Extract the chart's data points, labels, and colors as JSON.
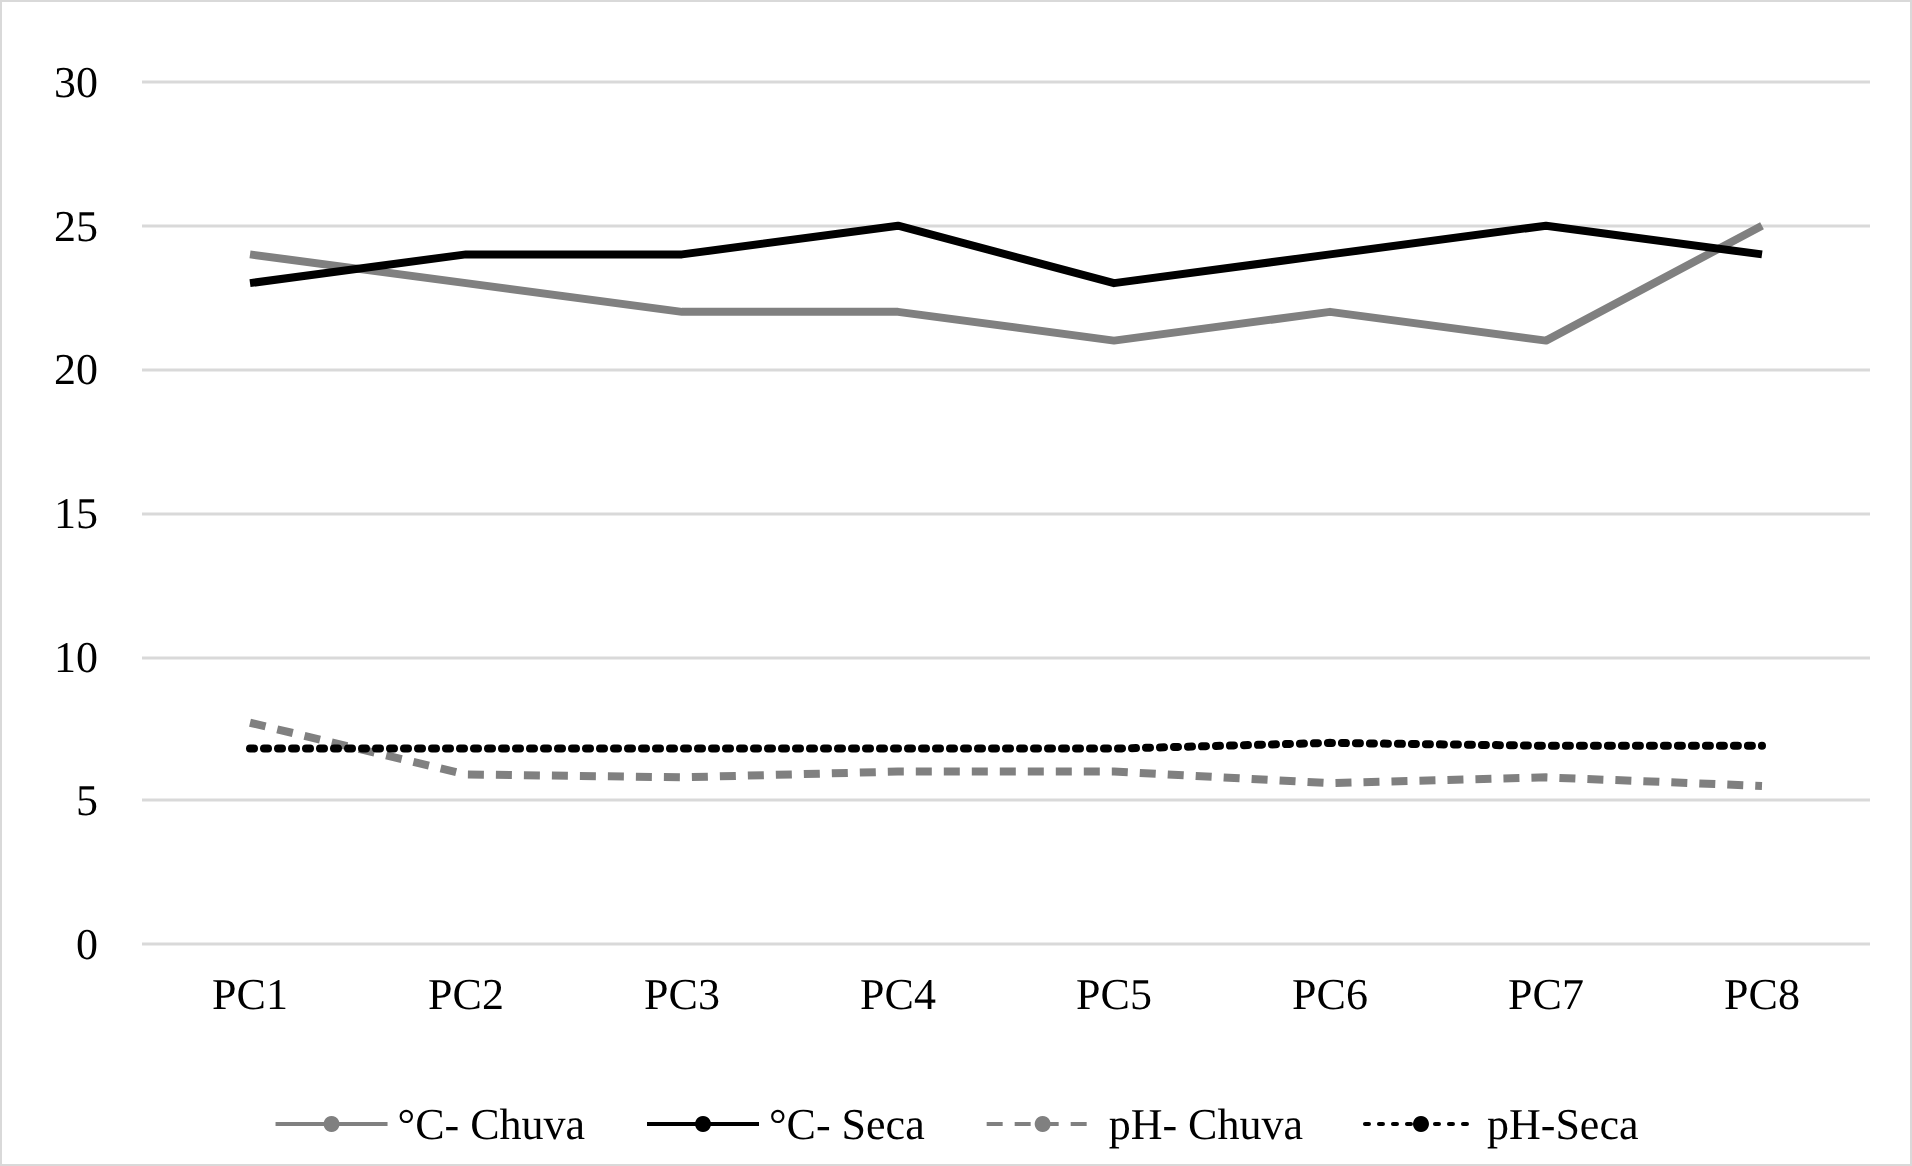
{
  "chart_data": {
    "type": "line",
    "categories": [
      "PC1",
      "PC2",
      "PC3",
      "PC4",
      "PC5",
      "PC6",
      "PC7",
      "PC8"
    ],
    "series": [
      {
        "name": "°C- Chuva",
        "color": "#808080",
        "line_style": "solid",
        "values": [
          24,
          23,
          22,
          22,
          21,
          22,
          21,
          25
        ]
      },
      {
        "name": "°C- Seca",
        "color": "#000000",
        "line_style": "solid",
        "values": [
          23,
          24,
          24,
          25,
          23,
          24,
          25,
          24
        ]
      },
      {
        "name": "pH- Chuva",
        "color": "#808080",
        "line_style": "dashed",
        "values": [
          7.7,
          5.9,
          5.8,
          6.0,
          6.0,
          5.6,
          5.8,
          5.5
        ]
      },
      {
        "name": "pH-Seca",
        "color": "#000000",
        "line_style": "dotted",
        "values": [
          6.8,
          6.8,
          6.8,
          6.8,
          6.8,
          7.0,
          6.9,
          6.9
        ]
      }
    ],
    "ylim": [
      0,
      30
    ],
    "yticks": [
      0,
      5,
      10,
      15,
      20,
      25,
      30
    ],
    "grid": "y",
    "legend": "bottom",
    "marker": "none"
  }
}
